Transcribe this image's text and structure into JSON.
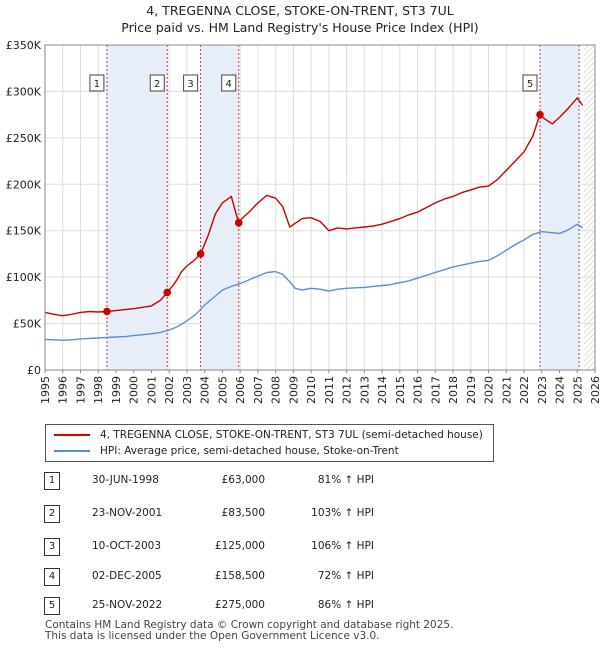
{
  "title_line1": "4, TREGENNA CLOSE, STOKE-ON-TRENT, ST3 7UL",
  "title_line2": "Price paid vs. HM Land Registry's House Price Index (HPI)",
  "colors": {
    "property": "#cc0000",
    "hpi": "#5b8fd0",
    "shade": "#e8eef8",
    "vline": "#cc0000",
    "hatch": "#aaaaaa",
    "grid": "#dddddd"
  },
  "chart_data": {
    "type": "line",
    "title": "Price paid vs. HM Land Registry's House Price Index (HPI)",
    "xlim": [
      1995,
      2026
    ],
    "ylim": [
      0,
      350000
    ],
    "x_ticks": [
      "1995",
      "1996",
      "1997",
      "1998",
      "1999",
      "2000",
      "2001",
      "2002",
      "2003",
      "2004",
      "2005",
      "2006",
      "2007",
      "2008",
      "2009",
      "2010",
      "2011",
      "2012",
      "2013",
      "2014",
      "2015",
      "2016",
      "2017",
      "2018",
      "2019",
      "2020",
      "2021",
      "2022",
      "2023",
      "2024",
      "2025",
      "2026"
    ],
    "y_ticks": [
      {
        "value": 0,
        "label": "£0"
      },
      {
        "value": 50000,
        "label": "£50K"
      },
      {
        "value": 100000,
        "label": "£100K"
      },
      {
        "value": 150000,
        "label": "£150K"
      },
      {
        "value": 200000,
        "label": "£200K"
      },
      {
        "value": 250000,
        "label": "£250K"
      },
      {
        "value": 300000,
        "label": "£300K"
      },
      {
        "value": 350000,
        "label": "£350K"
      }
    ],
    "shaded_spans": [
      [
        1998.49,
        2001.9
      ],
      [
        2003.77,
        2005.92
      ],
      [
        2022.9,
        2025.1
      ]
    ],
    "future_hatch_from": 2025.35,
    "series": [
      {
        "name": "4, TREGENNA CLOSE, STOKE-ON-TRENT, ST3 7UL (semi-detached house)",
        "x": [
          1995.0,
          1995.5,
          1996.0,
          1996.5,
          1997.0,
          1997.5,
          1998.0,
          1998.49,
          1999.0,
          1999.5,
          2000.0,
          2000.5,
          2001.0,
          2001.5,
          2001.89,
          2002.3,
          2002.7,
          2003.0,
          2003.4,
          2003.77,
          2004.2,
          2004.6,
          2005.0,
          2005.5,
          2005.91,
          2006.1,
          2006.5,
          2007.0,
          2007.5,
          2008.0,
          2008.4,
          2008.8,
          2009.1,
          2009.5,
          2010.0,
          2010.5,
          2011.0,
          2011.5,
          2012.0,
          2012.5,
          2013.0,
          2013.5,
          2014.0,
          2014.5,
          2015.0,
          2015.5,
          2016.0,
          2016.5,
          2017.0,
          2017.5,
          2018.0,
          2018.5,
          2019.0,
          2019.5,
          2020.0,
          2020.5,
          2021.0,
          2021.5,
          2022.0,
          2022.5,
          2022.89,
          2023.2,
          2023.6,
          2024.0,
          2024.5,
          2025.0,
          2025.3
        ],
        "values": [
          62000,
          60000,
          58500,
          60000,
          62000,
          63000,
          62500,
          63000,
          64000,
          65000,
          66000,
          67500,
          69000,
          75000,
          83500,
          93000,
          106000,
          112000,
          118000,
          125000,
          145000,
          168000,
          180000,
          187000,
          158500,
          163000,
          170000,
          180000,
          188000,
          185000,
          176000,
          154000,
          158000,
          163000,
          164000,
          160000,
          150000,
          153000,
          152000,
          153000,
          154000,
          155000,
          157000,
          160000,
          163000,
          167000,
          170000,
          175000,
          180000,
          184000,
          187000,
          191000,
          194000,
          197000,
          198000,
          205000,
          215000,
          225000,
          235000,
          252000,
          275000,
          270000,
          265000,
          272000,
          282000,
          293000,
          285000
        ]
      },
      {
        "name": "HPI: Average price, semi-detached house, Stoke-on-Trent",
        "x": [
          1995.0,
          1995.5,
          1996.0,
          1996.5,
          1997.0,
          1997.5,
          1998.0,
          1998.5,
          1999.0,
          1999.5,
          2000.0,
          2000.5,
          2001.0,
          2001.5,
          2002.0,
          2002.5,
          2003.0,
          2003.5,
          2004.0,
          2004.5,
          2005.0,
          2005.5,
          2006.0,
          2006.5,
          2007.0,
          2007.5,
          2008.0,
          2008.4,
          2008.8,
          2009.1,
          2009.5,
          2010.0,
          2010.5,
          2011.0,
          2011.5,
          2012.0,
          2012.5,
          2013.0,
          2013.5,
          2014.0,
          2014.5,
          2015.0,
          2015.5,
          2016.0,
          2016.5,
          2017.0,
          2017.5,
          2018.0,
          2018.5,
          2019.0,
          2019.5,
          2020.0,
          2020.5,
          2021.0,
          2021.5,
          2022.0,
          2022.5,
          2023.0,
          2023.5,
          2024.0,
          2024.5,
          2025.0,
          2025.3
        ],
        "values": [
          33000,
          32500,
          32000,
          32500,
          33500,
          34000,
          34500,
          35000,
          35500,
          36000,
          37000,
          38000,
          39000,
          40500,
          43000,
          47000,
          53000,
          60000,
          70000,
          78000,
          86000,
          90000,
          93000,
          97000,
          101000,
          105000,
          106000,
          103000,
          95000,
          88000,
          86000,
          88000,
          87000,
          85000,
          87000,
          88000,
          88500,
          89000,
          90000,
          91000,
          92000,
          94000,
          96000,
          99000,
          102000,
          105000,
          108000,
          111000,
          113000,
          115000,
          117000,
          118000,
          123000,
          129000,
          135000,
          140000,
          146000,
          149000,
          148000,
          147000,
          151000,
          157000,
          153000
        ]
      }
    ],
    "sales": [
      {
        "num": "1",
        "x": 1998.49,
        "value": 63000
      },
      {
        "num": "2",
        "x": 2001.89,
        "value": 83500
      },
      {
        "num": "3",
        "x": 2003.77,
        "value": 125000
      },
      {
        "num": "4",
        "x": 2005.92,
        "value": 158500
      },
      {
        "num": "5",
        "x": 2022.9,
        "value": 275000
      }
    ]
  },
  "legend": {
    "property_label": "4, TREGENNA CLOSE, STOKE-ON-TRENT, ST3 7UL (semi-detached house)",
    "hpi_label": "HPI: Average price, semi-detached house, Stoke-on-Trent"
  },
  "sales_table": [
    {
      "num": "1",
      "date": "30-JUN-1998",
      "price": "£63,000",
      "hpi": "81% ↑ HPI"
    },
    {
      "num": "2",
      "date": "23-NOV-2001",
      "price": "£83,500",
      "hpi": "103% ↑ HPI"
    },
    {
      "num": "3",
      "date": "10-OCT-2003",
      "price": "£125,000",
      "hpi": "106% ↑ HPI"
    },
    {
      "num": "4",
      "date": "02-DEC-2005",
      "price": "£158,500",
      "hpi": "72% ↑ HPI"
    },
    {
      "num": "5",
      "date": "25-NOV-2022",
      "price": "£275,000",
      "hpi": "86% ↑ HPI"
    }
  ],
  "footer_line1": "Contains HM Land Registry data © Crown copyright and database right 2025.",
  "footer_line2": "This data is licensed under the Open Government Licence v3.0."
}
